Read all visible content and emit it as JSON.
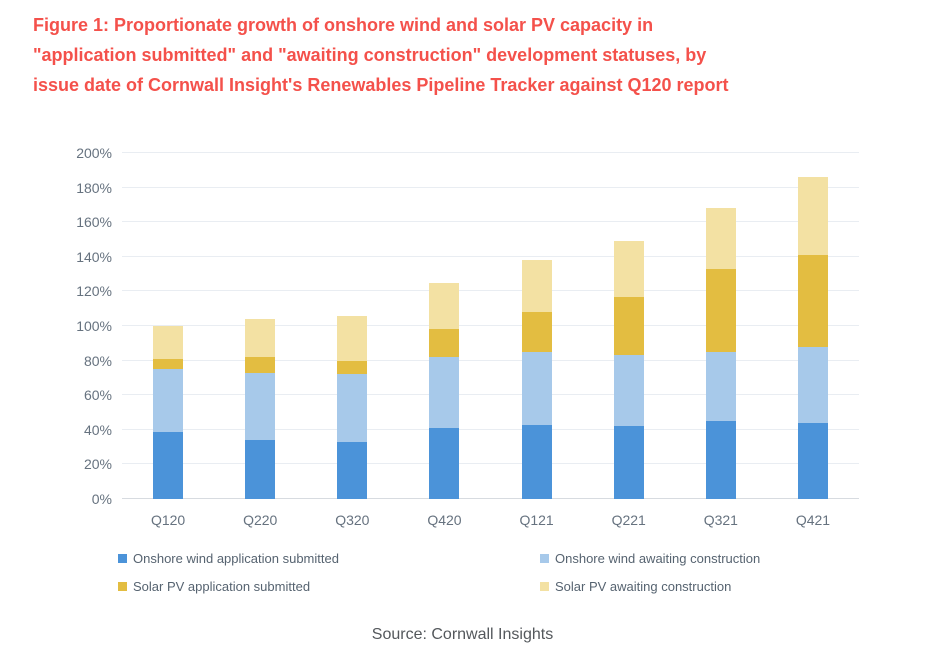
{
  "figure": {
    "title_lines": [
      "Figure 1: Proportionate growth of onshore wind and solar PV capacity in",
      "\"application submitted\" and \"awaiting construction\" development statuses, by",
      "issue date of Cornwall Insight's Renewables Pipeline Tracker against Q120 report"
    ],
    "source": "Source: Cornwall Insights"
  },
  "colors": {
    "title_text": "#F4514B",
    "axis_text": "#66727F",
    "legend_text": "#566370",
    "gridline": "#E9EDF2",
    "baseline": "#D7DBE0",
    "source_text": "#54585C"
  },
  "chart_data": {
    "type": "bar",
    "stacked": true,
    "title": "Figure 1: Proportionate growth of onshore wind and solar PV capacity in \"application submitted\" and \"awaiting construction\" development statuses, by issue date of Cornwall Insight's Renewables Pipeline Tracker against Q120 report",
    "xlabel": "",
    "ylabel": "",
    "ylim": [
      0,
      200
    ],
    "ytick_step": 20,
    "ytick_labels": [
      "0%",
      "20%",
      "40%",
      "60%",
      "80%",
      "100%",
      "120%",
      "140%",
      "160%",
      "180%",
      "200%"
    ],
    "grid": true,
    "legend_position": "bottom",
    "categories": [
      "Q120",
      "Q220",
      "Q320",
      "Q420",
      "Q121",
      "Q221",
      "Q321",
      "Q421"
    ],
    "series": [
      {
        "name": "Onshore wind application submitted",
        "color": "#4B93D9",
        "values": [
          39,
          34,
          33,
          41,
          43,
          42,
          45,
          44
        ]
      },
      {
        "name": "Onshore wind awaiting construction",
        "color": "#A7C9EA",
        "values": [
          36,
          39,
          39,
          41,
          42,
          41,
          40,
          44
        ]
      },
      {
        "name": "Solar PV application submitted",
        "color": "#E3BD41",
        "values": [
          6,
          9,
          8,
          16,
          23,
          34,
          48,
          53
        ]
      },
      {
        "name": "Solar PV awaiting construction",
        "color": "#F3E1A3",
        "values": [
          19,
          22,
          26,
          27,
          30,
          32,
          35,
          45
        ]
      }
    ],
    "stacked_totals": [
      100,
      104,
      106,
      125,
      138,
      149,
      168,
      186
    ]
  }
}
